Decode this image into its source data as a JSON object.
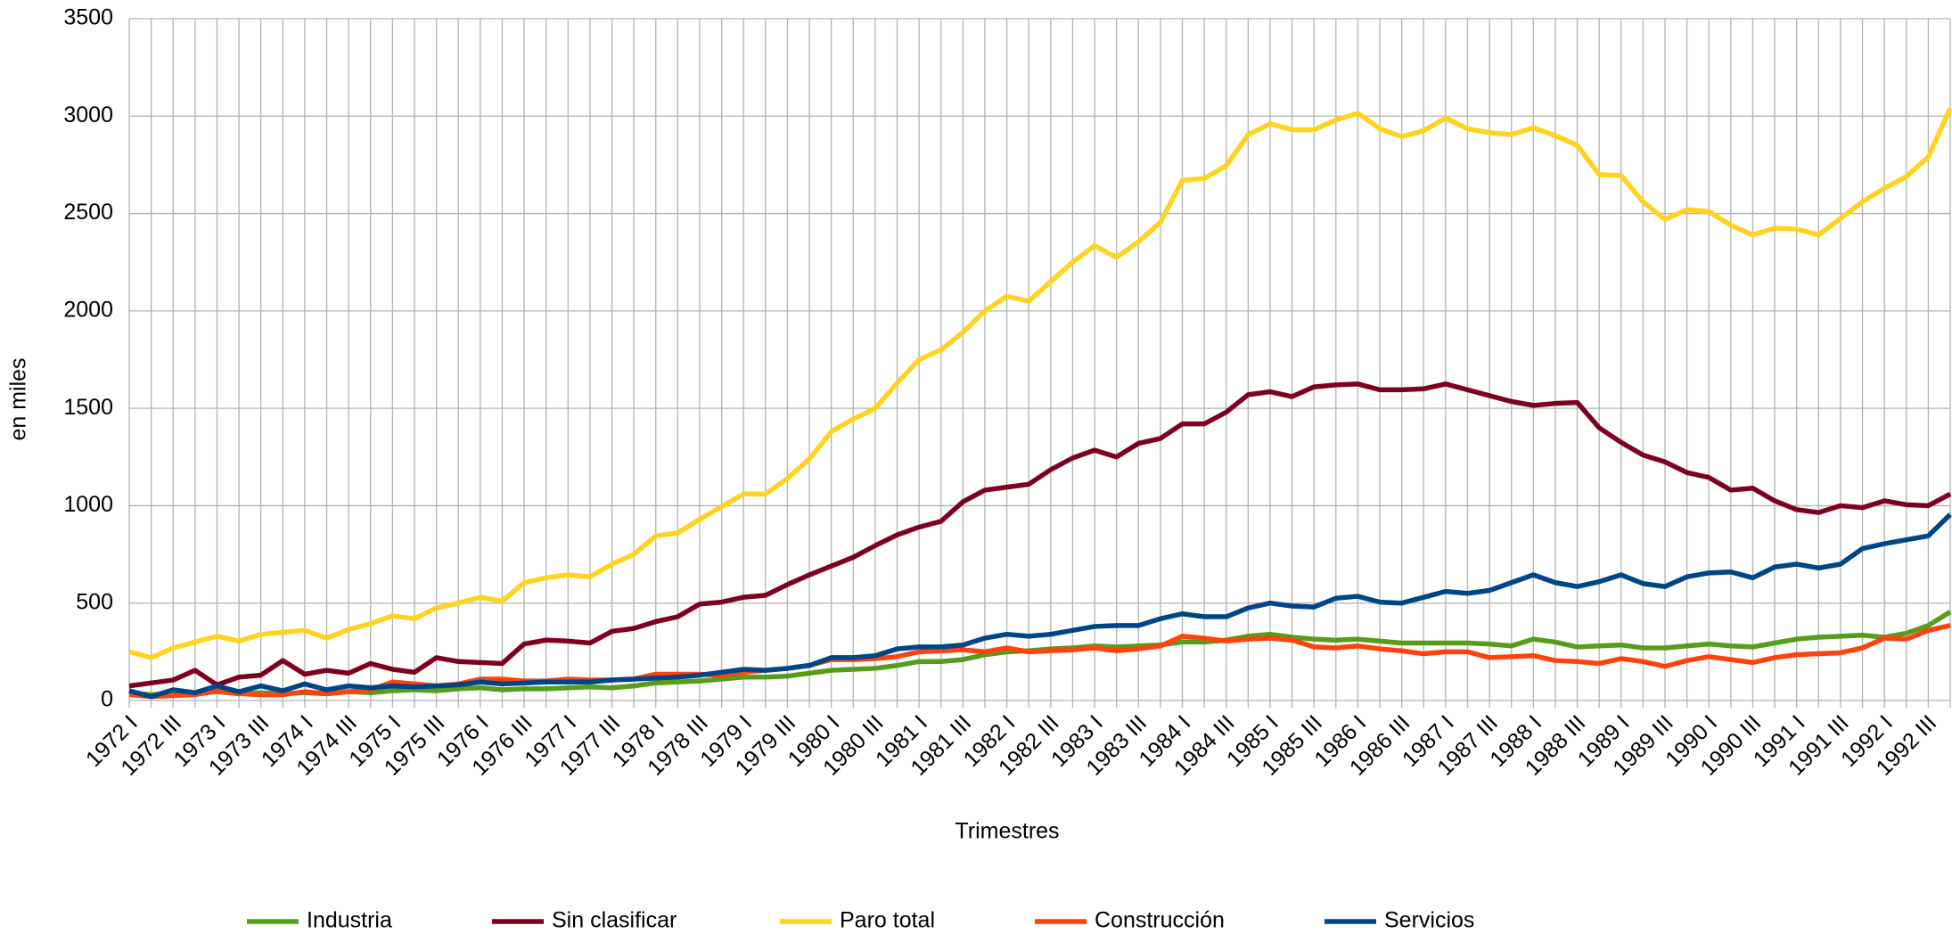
{
  "chart_data": {
    "type": "line",
    "xlabel": "Trimestres",
    "ylabel": "en miles",
    "categories": [
      "1972 I",
      null,
      "1972 III",
      null,
      "1973 I",
      null,
      "1973 III",
      null,
      "1974 I",
      null,
      "1974 III",
      null,
      "1975 I",
      null,
      "1975 III",
      null,
      "1976 I",
      null,
      "1976 III",
      null,
      "1977 I",
      null,
      "1977 III",
      null,
      "1978 I",
      null,
      "1978 III",
      null,
      "1979 I",
      null,
      "1979 III",
      null,
      "1980 I",
      null,
      "1980 III",
      null,
      "1981 I",
      null,
      "1981 III",
      null,
      "1982 I",
      null,
      "1982 III",
      null,
      "1983 I",
      null,
      "1983 III",
      null,
      "1984 I",
      null,
      "1984 III",
      null,
      "1985 I",
      null,
      "1985 III",
      null,
      "1986 I",
      null,
      "1986 III",
      null,
      "1987 I",
      null,
      "1987 III",
      null,
      "1988 I",
      null,
      "1988 III",
      null,
      "1989 I",
      null,
      "1989 III",
      null,
      "1990 I",
      null,
      "1990 III",
      null,
      "1991 I",
      null,
      "1991 III",
      null,
      "1992 I",
      null,
      "1992 III",
      null
    ],
    "series": [
      {
        "name": "Industria",
        "color": "#579d1c",
        "values": [
          40,
          30,
          35,
          35,
          45,
          35,
          40,
          35,
          40,
          35,
          45,
          40,
          50,
          55,
          50,
          60,
          65,
          55,
          60,
          60,
          65,
          70,
          65,
          75,
          90,
          95,
          100,
          110,
          120,
          120,
          125,
          140,
          155,
          160,
          165,
          180,
          200,
          200,
          210,
          235,
          250,
          255,
          265,
          270,
          280,
          275,
          280,
          285,
          300,
          300,
          310,
          330,
          340,
          325,
          315,
          310,
          315,
          305,
          295,
          295,
          295,
          295,
          290,
          280,
          315,
          300,
          275,
          280,
          285,
          270,
          270,
          280,
          290,
          280,
          275,
          295,
          315,
          325,
          330,
          335,
          325,
          345,
          385,
          455
        ]
      },
      {
        "name": "Sin clasificar",
        "color": "#7e0021",
        "values": [
          75,
          90,
          105,
          155,
          80,
          120,
          130,
          205,
          135,
          155,
          140,
          190,
          160,
          145,
          220,
          200,
          195,
          190,
          290,
          310,
          305,
          295,
          355,
          370,
          405,
          430,
          495,
          505,
          530,
          540,
          595,
          645,
          690,
          735,
          795,
          850,
          890,
          920,
          1020,
          1080,
          1095,
          1110,
          1185,
          1245,
          1285,
          1250,
          1320,
          1345,
          1420,
          1420,
          1480,
          1570,
          1585,
          1560,
          1610,
          1620,
          1625,
          1595,
          1595,
          1600,
          1625,
          1595,
          1565,
          1535,
          1515,
          1525,
          1530,
          1400,
          1325,
          1260,
          1225,
          1170,
          1145,
          1080,
          1090,
          1025,
          980,
          965,
          1000,
          990,
          1025,
          1005,
          1000,
          1060
        ]
      },
      {
        "name": "Paro total",
        "color": "#ffd320",
        "values": [
          250,
          220,
          270,
          300,
          330,
          305,
          340,
          350,
          360,
          320,
          365,
          395,
          435,
          420,
          475,
          500,
          530,
          510,
          605,
          630,
          645,
          635,
          700,
          750,
          845,
          860,
          930,
          995,
          1060,
          1060,
          1140,
          1240,
          1380,
          1445,
          1500,
          1630,
          1750,
          1800,
          1890,
          2000,
          2075,
          2050,
          2150,
          2250,
          2335,
          2275,
          2355,
          2455,
          2670,
          2680,
          2745,
          2905,
          2960,
          2930,
          2930,
          2980,
          3015,
          2935,
          2895,
          2925,
          2990,
          2935,
          2915,
          2905,
          2940,
          2900,
          2850,
          2700,
          2695,
          2560,
          2470,
          2520,
          2510,
          2440,
          2390,
          2425,
          2420,
          2390,
          2475,
          2560,
          2630,
          2690,
          2790,
          3040
        ]
      },
      {
        "name": "Construcción",
        "color": "#ff420e",
        "values": [
          30,
          20,
          25,
          30,
          50,
          35,
          30,
          30,
          45,
          35,
          45,
          55,
          95,
          85,
          75,
          85,
          110,
          110,
          100,
          100,
          110,
          105,
          105,
          110,
          135,
          135,
          135,
          130,
          145,
          155,
          165,
          180,
          210,
          210,
          215,
          225,
          250,
          255,
          260,
          250,
          270,
          250,
          255,
          260,
          270,
          255,
          265,
          280,
          330,
          320,
          305,
          315,
          320,
          310,
          275,
          270,
          280,
          265,
          255,
          240,
          250,
          250,
          220,
          225,
          230,
          205,
          200,
          190,
          215,
          200,
          175,
          205,
          225,
          210,
          195,
          220,
          235,
          240,
          245,
          270,
          320,
          315,
          360,
          385
        ]
      },
      {
        "name": "Servicios",
        "color": "#004586",
        "values": [
          50,
          20,
          55,
          40,
          75,
          45,
          75,
          50,
          85,
          55,
          75,
          65,
          75,
          70,
          75,
          80,
          95,
          85,
          90,
          95,
          95,
          95,
          105,
          110,
          115,
          120,
          130,
          145,
          160,
          155,
          165,
          180,
          220,
          220,
          230,
          265,
          275,
          275,
          285,
          320,
          340,
          330,
          340,
          360,
          380,
          385,
          385,
          420,
          445,
          430,
          430,
          475,
          500,
          485,
          480,
          525,
          535,
          505,
          500,
          530,
          560,
          550,
          565,
          605,
          645,
          605,
          585,
          610,
          645,
          600,
          585,
          635,
          655,
          660,
          630,
          685,
          700,
          680,
          700,
          780,
          805,
          825,
          845,
          955
        ]
      }
    ],
    "ylim": [
      0,
      3500
    ],
    "yticks": [
      0,
      500,
      1000,
      1500,
      2000,
      2500,
      3000,
      3500
    ],
    "grid": true,
    "legend": "bottom"
  }
}
